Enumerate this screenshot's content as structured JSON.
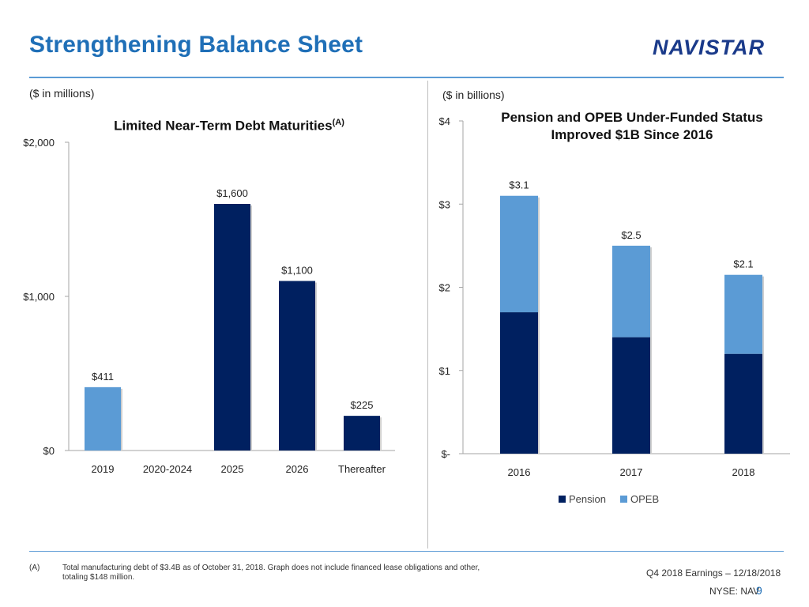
{
  "header": {
    "title": "Strengthening Balance Sheet",
    "logo_text": "NAVISTAR"
  },
  "colors": {
    "navy": "#002060",
    "light_blue": "#5b9bd5",
    "title_blue": "#1f6fb7"
  },
  "left": {
    "unit_label": "($ in millions)"
  },
  "right": {
    "unit_label": "($ in billions)"
  },
  "chart_data": [
    {
      "type": "bar",
      "title": "Limited Near-Term Debt Maturities",
      "title_superscript": "(A)",
      "categories": [
        "2019",
        "2020-2024",
        "2025",
        "2026",
        "Thereafter"
      ],
      "values": [
        411,
        0,
        1600,
        1100,
        225
      ],
      "value_labels": [
        "$411",
        "",
        "$1,600",
        "$1,100",
        "$225"
      ],
      "bar_colors": [
        "#5b9bd5",
        "#002060",
        "#002060",
        "#002060",
        "#002060"
      ],
      "ylim": [
        0,
        2000
      ],
      "yticks": [
        0,
        1000,
        2000
      ],
      "ytick_labels": [
        "$0",
        "$1,000",
        "$2,000"
      ],
      "xlabel": "",
      "ylabel": ""
    },
    {
      "type": "bar",
      "stacked": true,
      "title": "Pension and OPEB Under-Funded Status Improved $1B Since 2016",
      "title_lines": [
        "Pension and OPEB Under-Funded Status",
        "Improved $1B Since 2016"
      ],
      "categories": [
        "2016",
        "2017",
        "2018"
      ],
      "series": [
        {
          "name": "Pension",
          "color": "#002060",
          "values": [
            1.7,
            1.4,
            1.2
          ]
        },
        {
          "name": "OPEB",
          "color": "#5b9bd5",
          "values": [
            1.4,
            1.1,
            0.95
          ]
        }
      ],
      "total_labels": [
        "$3.1",
        "$2.5",
        "$2.1"
      ],
      "totals": [
        3.1,
        2.5,
        2.15
      ],
      "ylim": [
        0,
        4
      ],
      "yticks": [
        0,
        1,
        2,
        3,
        4
      ],
      "ytick_labels": [
        "$-",
        "$1",
        "$2",
        "$3",
        "$4"
      ],
      "legend_position": "bottom",
      "xlabel": "",
      "ylabel": ""
    }
  ],
  "footer": {
    "footnote_mark": "(A)",
    "footnote_text": "Total manufacturing debt of $3.4B as of October 31, 2018. Graph does not include financed lease obligations and other, totaling $148 million.",
    "earnings": "Q4 2018 Earnings – 12/18/2018",
    "ticker": "NYSE: NAV",
    "page_number": "9"
  }
}
